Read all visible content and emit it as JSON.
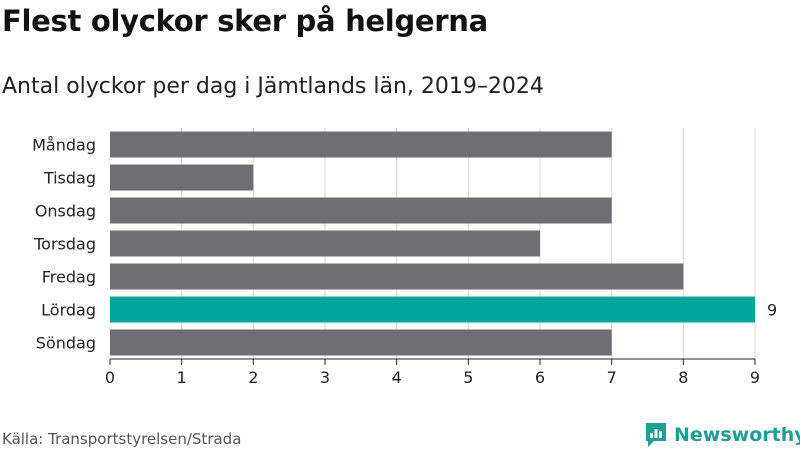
{
  "header": {
    "title": "Flest olyckor sker på helgerna",
    "subtitle": "Antal olyckor per dag i Jämtlands län, 2019–2024"
  },
  "chart_data": {
    "type": "bar",
    "orientation": "horizontal",
    "categories": [
      "Måndag",
      "Tisdag",
      "Onsdag",
      "Torsdag",
      "Fredag",
      "Lördag",
      "Söndag"
    ],
    "values": [
      7,
      2,
      7,
      6,
      8,
      9,
      7
    ],
    "highlight": {
      "category": "Lördag",
      "label": "9"
    },
    "xlim": [
      0,
      9
    ],
    "xticks": [
      0,
      1,
      2,
      3,
      4,
      5,
      6,
      7,
      8,
      9
    ],
    "grid": true,
    "colors": {
      "bar": "#6f6e74",
      "highlight": "#00a49a",
      "grid": "#d9d9d9",
      "axis": "#222222"
    }
  },
  "footer": {
    "source": "Källa: Transportstyrelsen/Strada",
    "brand": "Newsworthy",
    "brand_icon": "newsworthy-logo-icon",
    "brand_color": "#1f9e95"
  }
}
